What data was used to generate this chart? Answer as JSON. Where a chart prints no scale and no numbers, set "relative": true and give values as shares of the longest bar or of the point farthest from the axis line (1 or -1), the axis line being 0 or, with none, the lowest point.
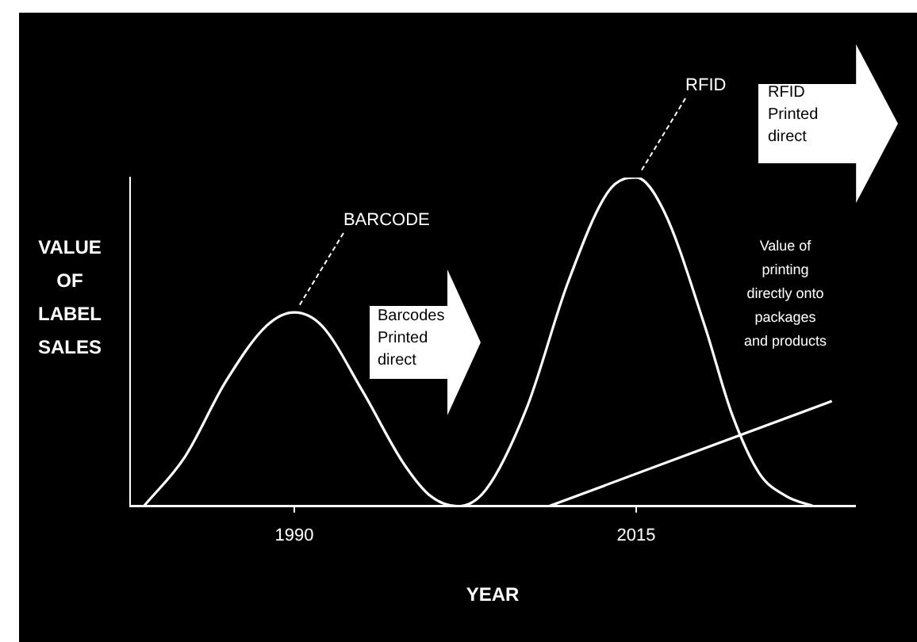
{
  "chart_data": {
    "type": "line",
    "xlabel": "YEAR",
    "ylabel": "VALUE OF LABEL SALES",
    "relative": true,
    "xlim": [
      1978,
      2031
    ],
    "xticks": [
      1990,
      2015
    ],
    "grid": false,
    "legend": false,
    "marker": "none",
    "line_style": "solid",
    "series": [
      {
        "color": "#ffffff",
        "x": [
          1979,
          1982,
          1985,
          1988,
          1990,
          1992,
          1995,
          1998,
          2000,
          2002,
          2004,
          2007,
          2010,
          2013,
          2015,
          2017,
          2020,
          2022,
          2024,
          2026,
          2028
        ],
        "values": [
          0,
          0.15,
          0.38,
          0.55,
          0.59,
          0.55,
          0.35,
          0.13,
          0.03,
          0,
          0.05,
          0.3,
          0.68,
          0.96,
          1,
          0.9,
          0.55,
          0.28,
          0.1,
          0.03,
          0
        ]
      },
      {
        "color": "#ffffff",
        "x": [
          2008.6,
          2029.3
        ],
        "values": [
          0,
          0.32
        ]
      }
    ],
    "annotations": [
      {
        "text": "BARCODE",
        "x": 1990,
        "y": 0.59
      },
      {
        "text": "RFID",
        "x": 2015,
        "y": 1
      },
      "Barcodes Printed direct",
      "RFID Printed direct",
      "Value of printing directly onto packages and products"
    ]
  }
}
